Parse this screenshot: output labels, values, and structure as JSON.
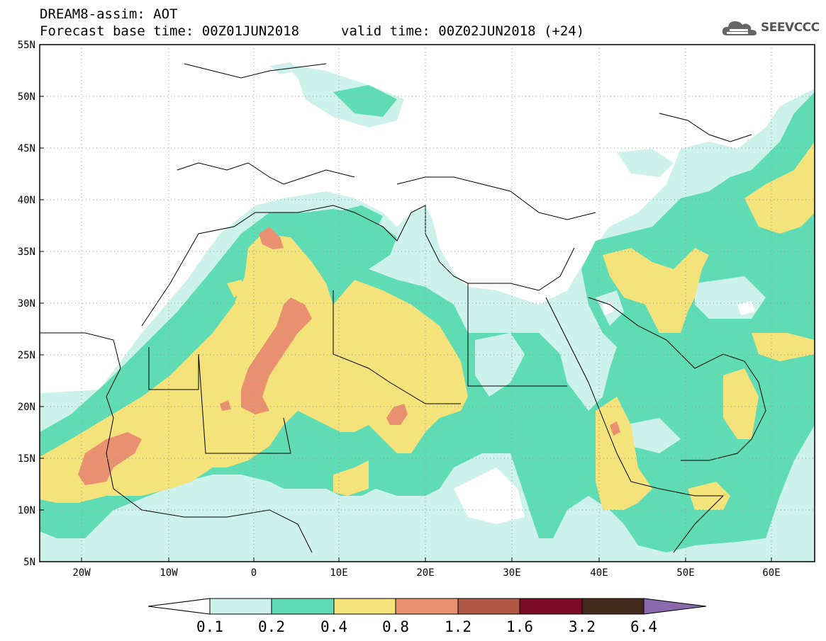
{
  "header": {
    "line1": "DREAM8-assim: AOT",
    "line2": "Forecast base time: 00Z01JUN2018",
    "valid": "valid time: 00Z02JUN2018 (+24)"
  },
  "logo": {
    "text": "SEEVCCC",
    "icon": "cloud-icon"
  },
  "map": {
    "lat_labels": [
      "55N",
      "50N",
      "45N",
      "40N",
      "35N",
      "30N",
      "25N",
      "20N",
      "15N",
      "10N",
      "5N"
    ],
    "lon_labels": [
      "20W",
      "10W",
      "0",
      "10E",
      "20E",
      "30E",
      "40E",
      "50E",
      "60E"
    ]
  },
  "colorbar": {
    "labels": [
      "0.1",
      "0.2",
      "0.4",
      "0.8",
      "1.2",
      "1.6",
      "3.2",
      "6.4"
    ],
    "colors": [
      "#cdf2ec",
      "#5fdcb4",
      "#f4e27a",
      "#e99070",
      "#b05848",
      "#7a0c28",
      "#43291c",
      "#8a6aac"
    ]
  }
}
